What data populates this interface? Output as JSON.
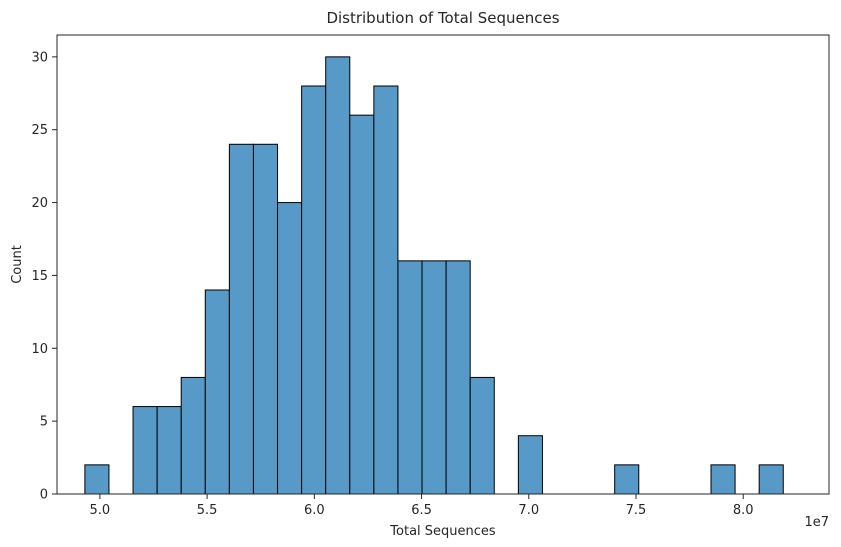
{
  "chart_data": {
    "type": "bar",
    "title": "Distribution of Total Sequences",
    "xlabel": "Total Sequences",
    "ylabel": "Count",
    "x_offset_label": "1e7",
    "bar_color": "#5799c7",
    "edge_color": "#000000",
    "xlim": [
      4.8,
      8.4
    ],
    "ylim": [
      0,
      31.5
    ],
    "xticks": [
      5.0,
      5.5,
      6.0,
      6.5,
      7.0,
      7.5,
      8.0
    ],
    "xtick_labels": [
      "5.0",
      "5.5",
      "6.0",
      "6.5",
      "7.0",
      "7.5",
      "8.0"
    ],
    "yticks": [
      0,
      5,
      10,
      15,
      20,
      25,
      30
    ],
    "ytick_labels": [
      "0",
      "5",
      "10",
      "15",
      "20",
      "25",
      "30"
    ],
    "bin_start": 4.93,
    "bin_width": 0.1123,
    "counts": [
      2,
      0,
      6,
      6,
      8,
      14,
      24,
      24,
      20,
      28,
      30,
      26,
      28,
      16,
      16,
      16,
      8,
      0,
      4,
      0,
      0,
      0,
      2,
      0,
      0,
      0,
      2,
      0,
      2
    ],
    "grid": false
  }
}
